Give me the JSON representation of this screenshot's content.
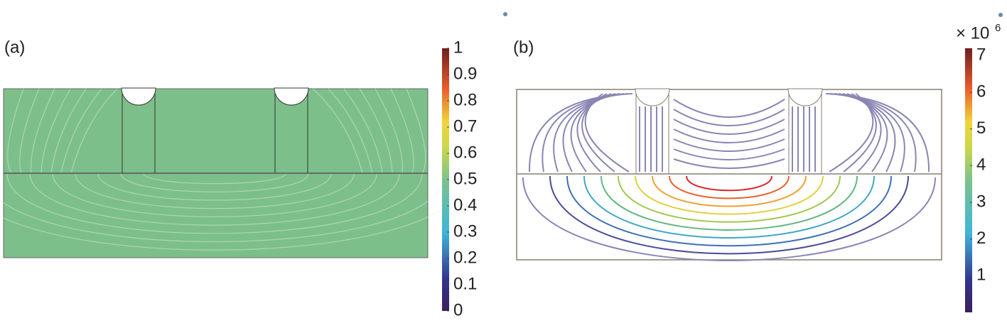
{
  "panels": [
    {
      "label": "(a)",
      "colorbar": {
        "lim": [
          0,
          1
        ],
        "ticks": [
          0,
          0.1,
          0.2,
          0.3,
          0.4,
          0.5,
          0.6,
          0.7,
          0.8,
          0.9,
          1
        ]
      }
    },
    {
      "label": "(b)",
      "colorbar": {
        "multiplier": "× 10",
        "exponent": "6",
        "lim": [
          0,
          7.2
        ],
        "ticks": [
          1,
          2,
          3,
          4,
          5,
          6,
          7
        ]
      }
    }
  ]
}
